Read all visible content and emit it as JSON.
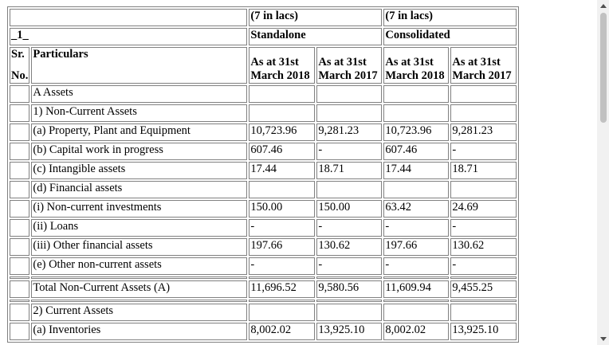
{
  "header": {
    "unit_standalone": "(7 in lacs)",
    "unit_consolidated": "(7 in lacs)",
    "page_marker": "_1_",
    "standalone": "Standalone",
    "consolidated": "Consolidated",
    "sr_line1": "Sr.",
    "sr_line2": "No.",
    "particulars": "Particulars",
    "col1_line1": "As at 31st",
    "col1_line2": "March 2018",
    "col2_line1": "As at 31st",
    "col2_line2": "March 2017",
    "col3_line1": "As at 31st",
    "col3_line2": "March 2018",
    "col4_line1": "As at 31st",
    "col4_line2": "March 2017"
  },
  "rows": [
    {
      "label": "A Assets",
      "v1": "",
      "v2": "",
      "v3": "",
      "v4": ""
    },
    {
      "label": "1) Non-Current Assets",
      "v1": "",
      "v2": "",
      "v3": "",
      "v4": ""
    },
    {
      "label": "(a) Property, Plant and Equipment",
      "v1": "10,723.96",
      "v2": "9,281.23",
      "v3": "10,723.96",
      "v4": "9,281.23"
    },
    {
      "label": "(b) Capital work in progress",
      "v1": "607.46",
      "v2": "-",
      "v3": "607.46",
      "v4": "-"
    },
    {
      "label": "(c) Intangible assets",
      "v1": "17.44",
      "v2": "18.71",
      "v3": "17.44",
      "v4": "18.71"
    },
    {
      "label": "(d) Financial assets",
      "v1": "",
      "v2": "",
      "v3": "",
      "v4": ""
    },
    {
      "label": "(i) Non-current investments",
      "v1": "150.00",
      "v2": "150.00",
      "v3": "63.42",
      "v4": "24.69"
    },
    {
      "label": "(ii) Loans",
      "v1": "-",
      "v2": "-",
      "v3": "-",
      "v4": "-"
    },
    {
      "label": "(iii) Other financial assets",
      "v1": "197.66",
      "v2": "130.62",
      "v3": "197.66",
      "v4": "130.62"
    },
    {
      "label": "(e) Other non-current assets",
      "v1": "-",
      "v2": "-",
      "v3": "-",
      "v4": "-"
    }
  ],
  "total": {
    "label": "Total Non-Current Assets (A)",
    "v1": "11,696.52",
    "v2": "9,580.56",
    "v3": "11,609.94",
    "v4": "9,455.25"
  },
  "rows2": [
    {
      "label": "2) Current Assets",
      "v1": "",
      "v2": "",
      "v3": "",
      "v4": ""
    },
    {
      "label": "(a) Inventories",
      "v1": "8,002.02",
      "v2": "13,925.10",
      "v3": "8,002.02",
      "v4": "13,925.10"
    }
  ],
  "scrollbar": {
    "up_icon": "arrow-up",
    "down_icon": "arrow-down"
  }
}
